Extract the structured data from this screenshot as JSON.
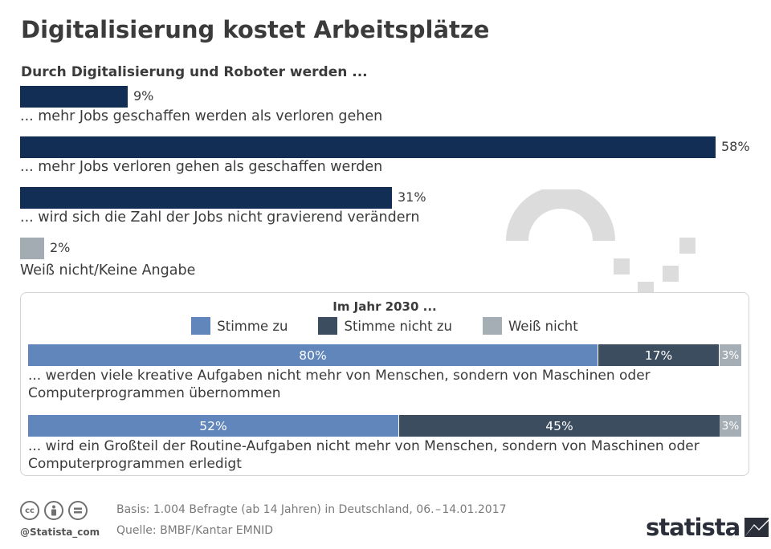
{
  "title": "Digitalisierung kostet Arbeitsplätze",
  "subtitle": "Durch Digitalisierung und Roboter werden ...",
  "colors": {
    "navy": "#132e55",
    "grey_bar": "#a3abb3",
    "agree": "#6186bb",
    "disagree": "#3d4d60",
    "unknown": "#a6aeb5",
    "decoration": "#dcdcdc"
  },
  "chart_data": [
    {
      "type": "bar",
      "orientation": "horizontal",
      "title": "Durch Digitalisierung und Roboter werden ...",
      "categories": [
        "... mehr Jobs geschaffen werden als verloren gehen",
        "... mehr Jobs verloren gehen als geschaffen werden",
        "... wird sich die Zahl der Jobs nicht gravierend verändern",
        "Weiß nicht/Keine Angabe"
      ],
      "values": [
        9,
        58,
        31,
        2
      ],
      "value_labels": [
        "9%",
        "58%",
        "31%",
        "2%"
      ],
      "unit": "%",
      "xlim": [
        0,
        58
      ],
      "grid": false
    },
    {
      "type": "bar",
      "orientation": "horizontal",
      "stacked": true,
      "title": "Im Jahr 2030 ...",
      "categories": [
        "... werden viele kreative Aufgaben nicht mehr von Menschen, sondern von Maschinen oder Computerprogrammen übernommen",
        "... wird ein Großteil der Routine-Aufgaben nicht mehr von Menschen, sondern von Maschinen oder Computerprogrammen erledigt"
      ],
      "series": [
        {
          "name": "Stimme zu",
          "values": [
            80,
            52
          ],
          "labels": [
            "80%",
            "52%"
          ]
        },
        {
          "name": "Stimme nicht zu",
          "values": [
            17,
            45
          ],
          "labels": [
            "17%",
            "45%"
          ]
        },
        {
          "name": "Weiß nicht",
          "values": [
            3,
            3
          ],
          "labels": [
            "3%",
            "3%"
          ]
        }
      ],
      "unit": "%",
      "legend_position": "top-center",
      "grid": false
    }
  ],
  "footer": {
    "handle": "@Statista_com",
    "basis": "Basis: 1.004 Befragte (ab 14 Jahren) in Deutschland, 06. – 14.01.2017",
    "source": "Quelle: BMBF/Kantar EMNID",
    "logo": "statista"
  },
  "icons": [
    "cc-license-icon",
    "attribution-icon",
    "no-derivatives-icon",
    "statista-logo-icon"
  ]
}
